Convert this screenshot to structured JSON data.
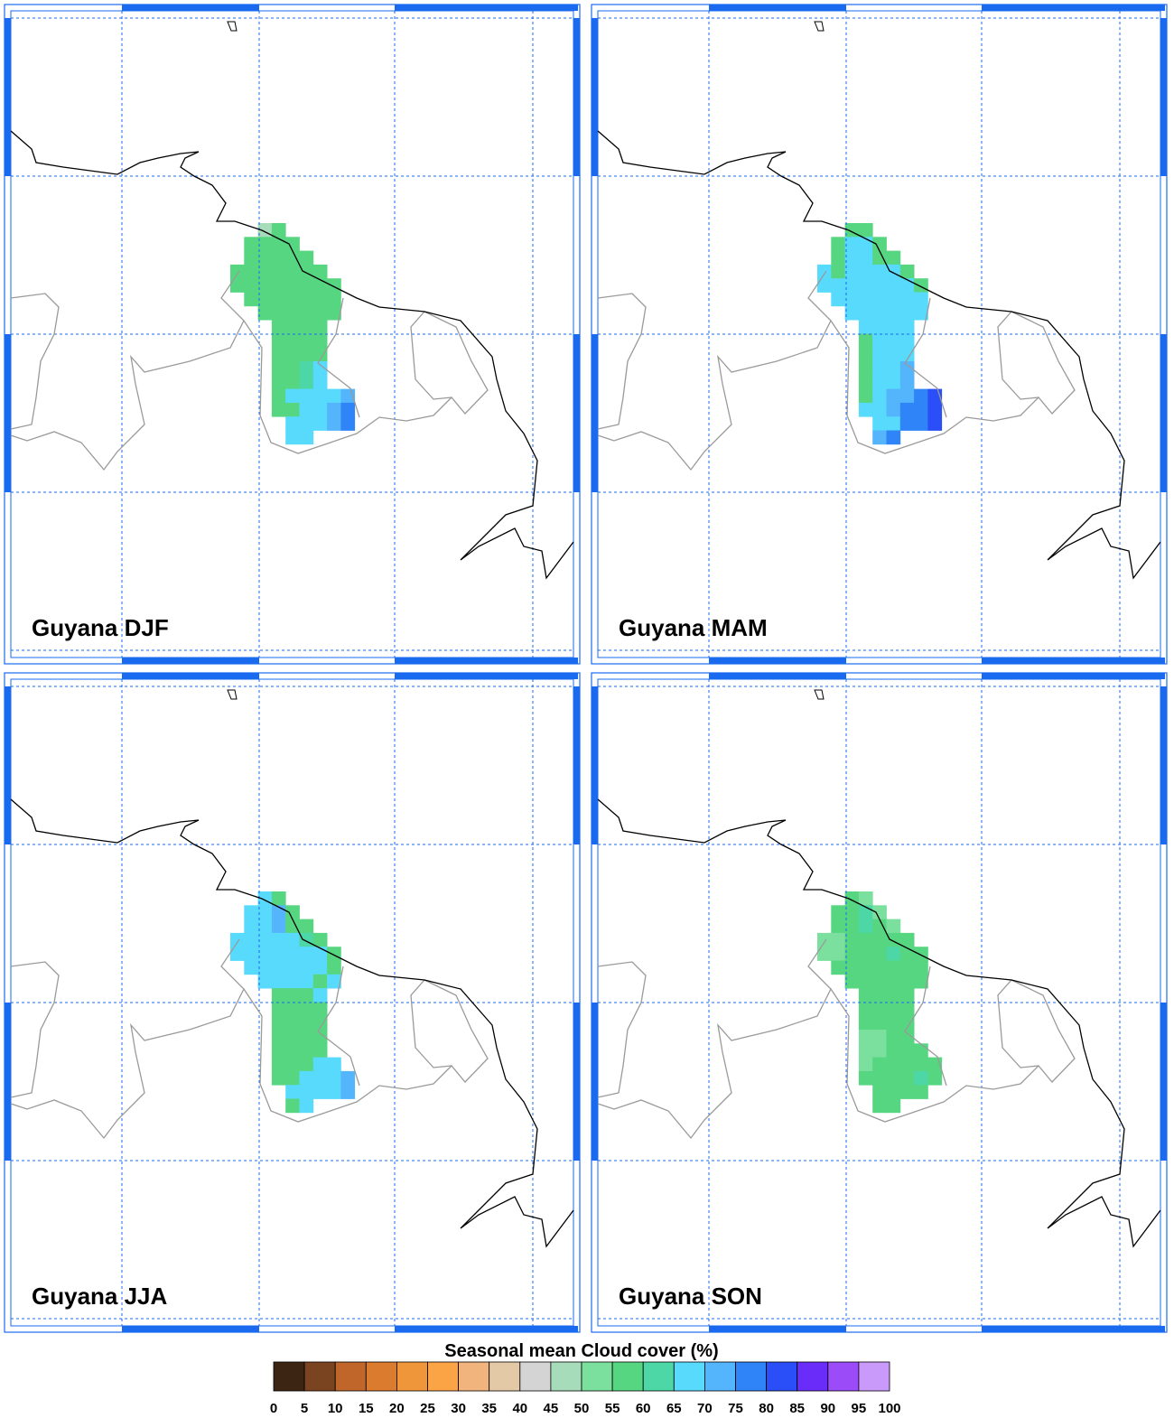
{
  "colorbar": {
    "title": "Seasonal mean Cloud cover (%)",
    "ticks": [
      0,
      5,
      10,
      15,
      20,
      25,
      30,
      35,
      40,
      45,
      50,
      55,
      60,
      65,
      70,
      75,
      80,
      85,
      90,
      95,
      100
    ],
    "colors": [
      "#3d2514",
      "#7b4420",
      "#c0662a",
      "#db7b2e",
      "#ef953a",
      "#fba446",
      "#f0b47c",
      "#e3c9a6",
      "#d4d4d4",
      "#a6dcb9",
      "#7be09d",
      "#57d681",
      "#4dd6a6",
      "#58dafc",
      "#55b5fc",
      "#2f84f8",
      "#2a4ef8",
      "#6a2cf8",
      "#9b4cf8",
      "#ca9afa"
    ]
  },
  "panels": [
    {
      "title": "Guyana DJF",
      "cells": [
        [
          null,
          null,
          47,
          57,
          null,
          null,
          null,
          null,
          null
        ],
        [
          null,
          57,
          57,
          57,
          57,
          null,
          null,
          null,
          null
        ],
        [
          null,
          57,
          57,
          57,
          57,
          57,
          null,
          null,
          null
        ],
        [
          57,
          57,
          57,
          57,
          57,
          57,
          57,
          null,
          null
        ],
        [
          57,
          57,
          57,
          57,
          57,
          57,
          57,
          57,
          null
        ],
        [
          null,
          57,
          57,
          57,
          57,
          57,
          57,
          57,
          null
        ],
        [
          null,
          null,
          57,
          57,
          57,
          57,
          57,
          57,
          null
        ],
        [
          null,
          null,
          null,
          57,
          57,
          57,
          57,
          null,
          null
        ],
        [
          null,
          null,
          null,
          57,
          57,
          57,
          57,
          null,
          null
        ],
        [
          null,
          null,
          null,
          57,
          57,
          57,
          57,
          null,
          null
        ],
        [
          null,
          null,
          null,
          57,
          57,
          62,
          67,
          null,
          null
        ],
        [
          null,
          null,
          null,
          57,
          57,
          62,
          67,
          null,
          null
        ],
        [
          null,
          null,
          null,
          57,
          67,
          67,
          67,
          67,
          72
        ],
        [
          null,
          null,
          null,
          57,
          57,
          67,
          67,
          72,
          77
        ],
        [
          null,
          null,
          null,
          null,
          67,
          67,
          67,
          72,
          77
        ],
        [
          null,
          null,
          null,
          null,
          67,
          67,
          null,
          null,
          null
        ]
      ]
    },
    {
      "title": "Guyana MAM",
      "cells": [
        [
          null,
          null,
          57,
          57,
          null,
          null,
          null,
          null,
          null
        ],
        [
          null,
          57,
          67,
          67,
          57,
          null,
          null,
          null,
          null
        ],
        [
          null,
          57,
          67,
          67,
          57,
          57,
          null,
          null,
          null
        ],
        [
          67,
          57,
          67,
          67,
          67,
          67,
          57,
          null,
          null
        ],
        [
          67,
          67,
          67,
          67,
          67,
          67,
          67,
          57,
          null
        ],
        [
          null,
          67,
          67,
          67,
          67,
          67,
          67,
          67,
          null
        ],
        [
          null,
          null,
          67,
          67,
          67,
          67,
          67,
          67,
          null
        ],
        [
          null,
          null,
          null,
          67,
          67,
          67,
          67,
          null,
          null
        ],
        [
          null,
          null,
          null,
          57,
          67,
          67,
          67,
          null,
          null
        ],
        [
          null,
          null,
          null,
          57,
          67,
          67,
          67,
          null,
          null
        ],
        [
          null,
          null,
          null,
          57,
          67,
          67,
          72,
          null,
          null
        ],
        [
          null,
          null,
          null,
          57,
          67,
          67,
          72,
          null,
          null
        ],
        [
          null,
          null,
          null,
          57,
          67,
          72,
          72,
          77,
          82
        ],
        [
          null,
          null,
          null,
          67,
          67,
          72,
          77,
          77,
          82
        ],
        [
          null,
          null,
          null,
          null,
          67,
          67,
          77,
          77,
          82
        ],
        [
          null,
          null,
          null,
          null,
          72,
          77,
          null,
          null,
          null
        ]
      ]
    },
    {
      "title": "Guyana JJA",
      "cells": [
        [
          null,
          null,
          67,
          57,
          null,
          null,
          null,
          null,
          null
        ],
        [
          null,
          67,
          67,
          72,
          57,
          null,
          null,
          null,
          null
        ],
        [
          null,
          67,
          67,
          72,
          57,
          57,
          null,
          null,
          null
        ],
        [
          67,
          67,
          67,
          67,
          67,
          62,
          57,
          null,
          null
        ],
        [
          67,
          67,
          67,
          67,
          67,
          67,
          67,
          57,
          null
        ],
        [
          null,
          67,
          67,
          67,
          67,
          67,
          67,
          57,
          null
        ],
        [
          null,
          null,
          67,
          67,
          67,
          67,
          57,
          67,
          null
        ],
        [
          null,
          null,
          null,
          57,
          57,
          57,
          67,
          null,
          null
        ],
        [
          null,
          null,
          null,
          57,
          57,
          57,
          57,
          null,
          null
        ],
        [
          null,
          null,
          null,
          57,
          57,
          57,
          57,
          null,
          null
        ],
        [
          null,
          null,
          null,
          57,
          57,
          57,
          57,
          null,
          null
        ],
        [
          null,
          null,
          null,
          57,
          57,
          57,
          57,
          null,
          null
        ],
        [
          null,
          null,
          null,
          57,
          57,
          57,
          67,
          67,
          null
        ],
        [
          null,
          null,
          null,
          57,
          57,
          67,
          67,
          67,
          72
        ],
        [
          null,
          null,
          null,
          null,
          67,
          67,
          67,
          67,
          72
        ],
        [
          null,
          null,
          null,
          null,
          57,
          67,
          null,
          null,
          null
        ]
      ]
    },
    {
      "title": "Guyana SON",
      "cells": [
        [
          null,
          null,
          57,
          52,
          null,
          null,
          null,
          null,
          null
        ],
        [
          null,
          57,
          57,
          62,
          52,
          null,
          null,
          null,
          null
        ],
        [
          null,
          57,
          57,
          62,
          57,
          52,
          null,
          null,
          null
        ],
        [
          52,
          52,
          57,
          57,
          57,
          57,
          57,
          null,
          null
        ],
        [
          52,
          52,
          57,
          57,
          57,
          62,
          57,
          57,
          null
        ],
        [
          null,
          57,
          57,
          57,
          57,
          57,
          57,
          57,
          null
        ],
        [
          null,
          null,
          57,
          57,
          57,
          57,
          57,
          57,
          null
        ],
        [
          null,
          null,
          null,
          57,
          57,
          57,
          57,
          null,
          null
        ],
        [
          null,
          null,
          null,
          57,
          57,
          57,
          57,
          null,
          null
        ],
        [
          null,
          null,
          null,
          57,
          57,
          57,
          57,
          null,
          null
        ],
        [
          null,
          null,
          null,
          52,
          52,
          57,
          57,
          null,
          null
        ],
        [
          null,
          null,
          null,
          52,
          52,
          57,
          57,
          57,
          null
        ],
        [
          null,
          null,
          null,
          52,
          57,
          57,
          57,
          57,
          57
        ],
        [
          null,
          null,
          null,
          57,
          57,
          57,
          57,
          62,
          57
        ],
        [
          null,
          null,
          null,
          null,
          57,
          57,
          57,
          57,
          null
        ],
        [
          null,
          null,
          null,
          null,
          57,
          57,
          null,
          null,
          null
        ]
      ]
    }
  ]
}
